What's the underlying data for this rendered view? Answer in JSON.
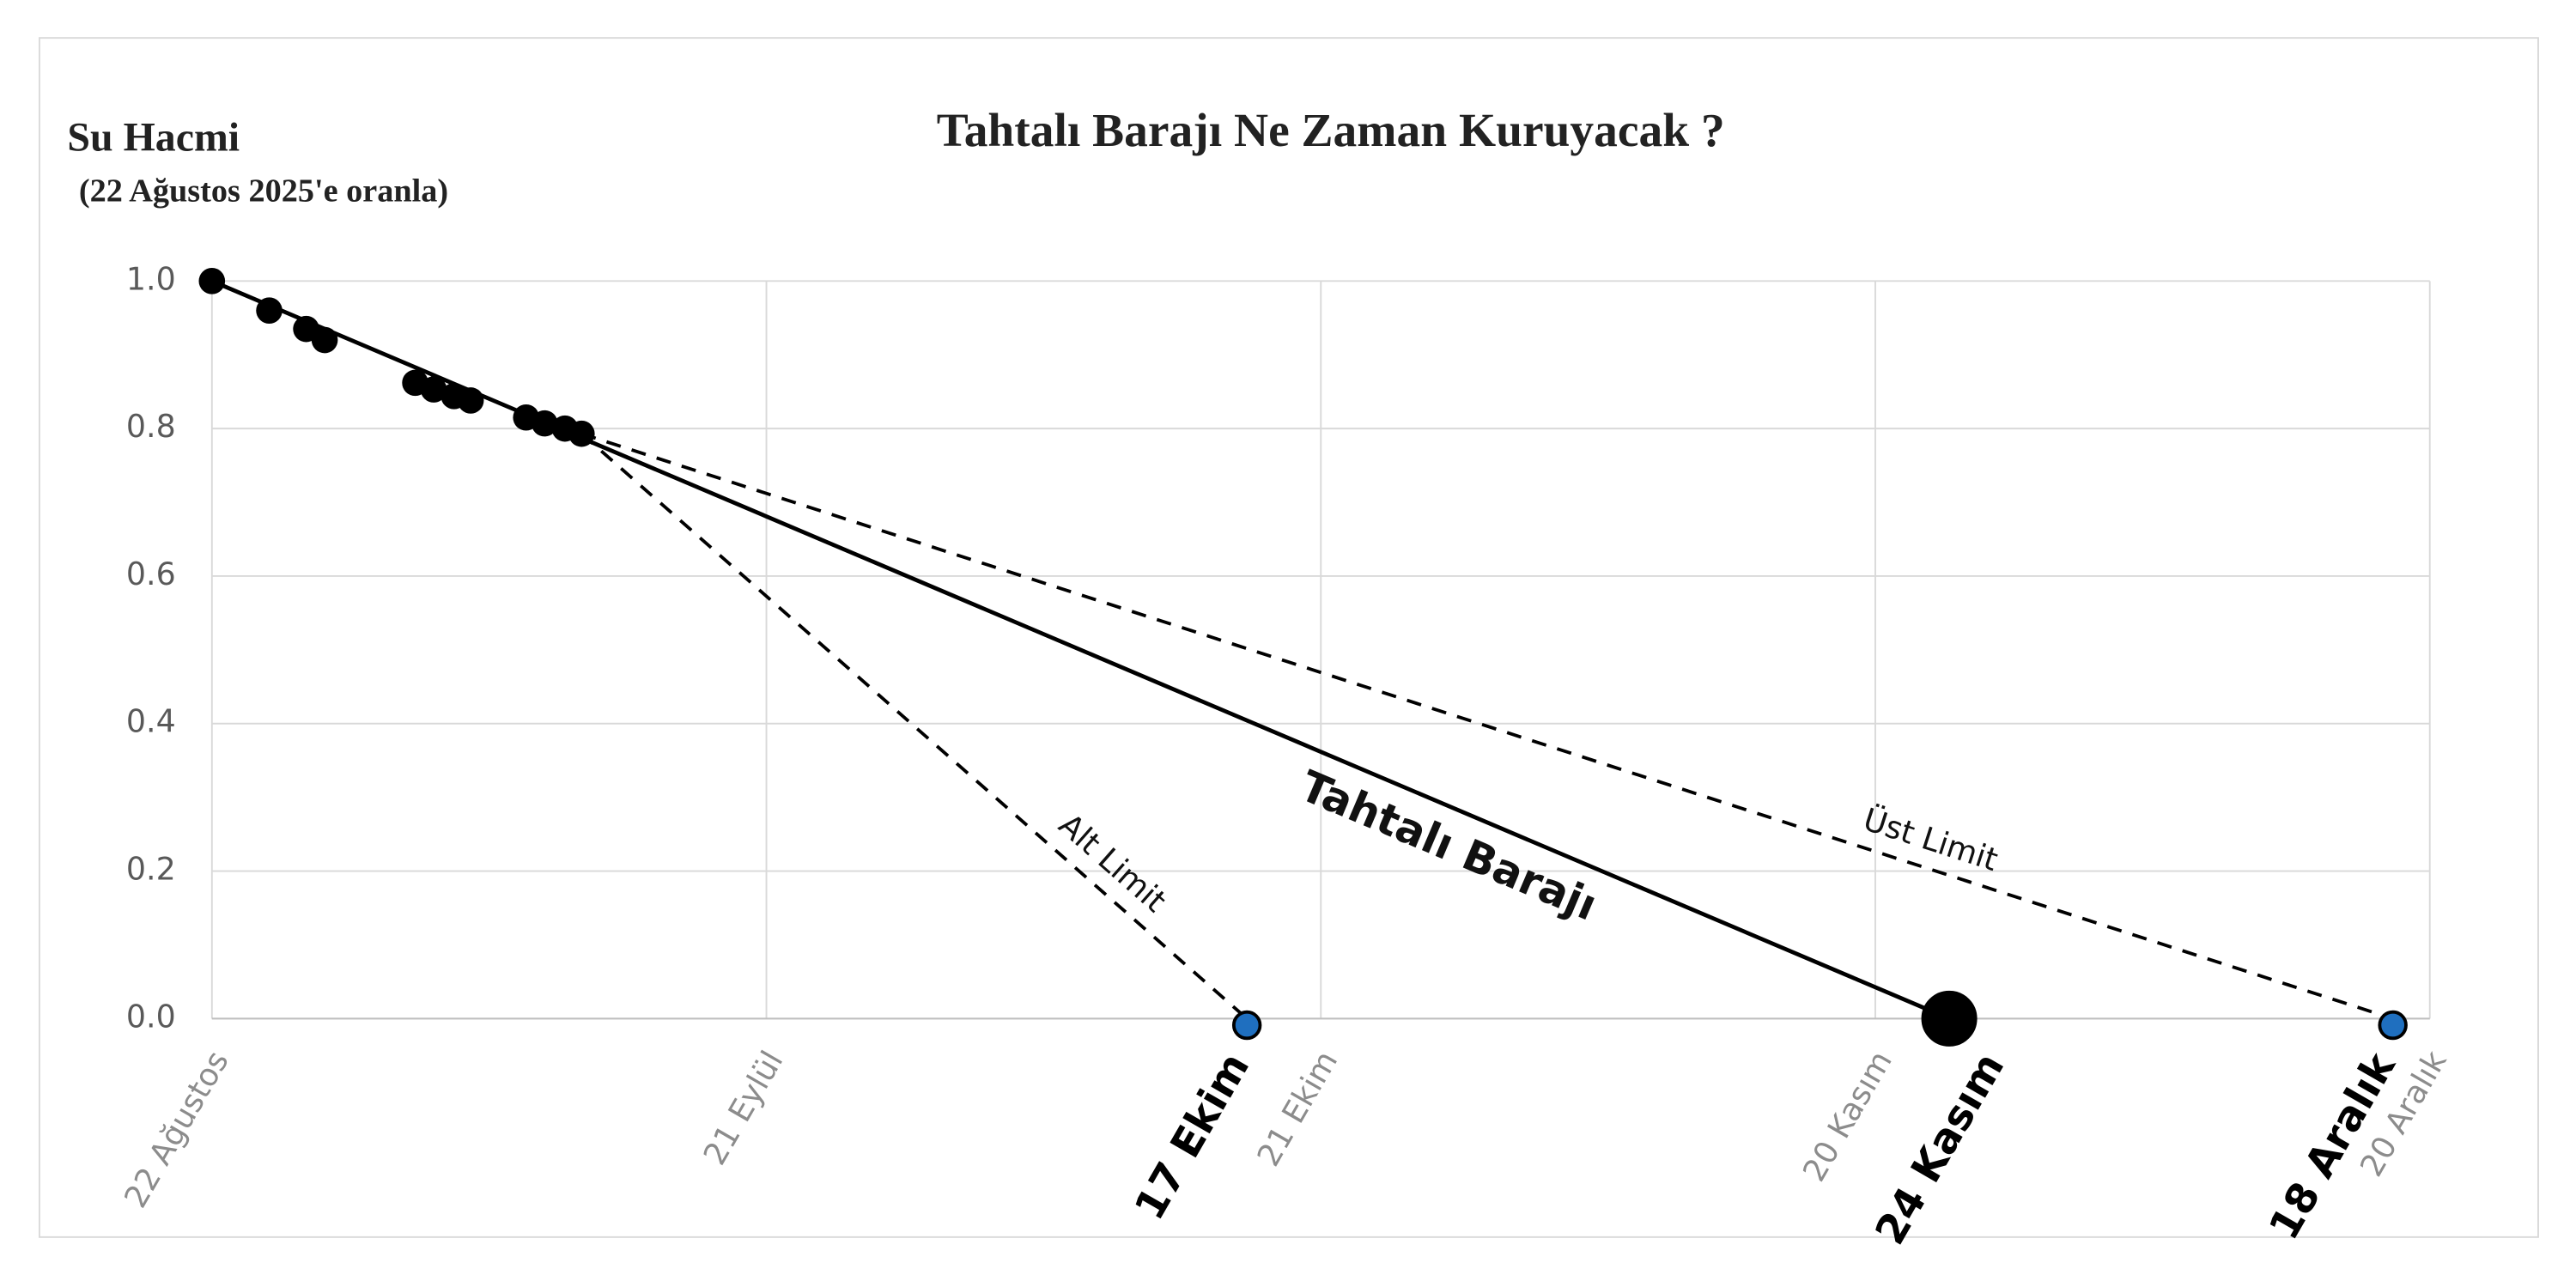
{
  "chart_data": {
    "type": "line",
    "title": "Tahtalı Barajı Ne Zaman Kuruyacak ?",
    "ylabel": "Su Hacmi",
    "ylabel_sub": "(22 Ağustos 2025'e oranla)",
    "xlim": [
      0,
      120
    ],
    "xticks": [
      {
        "value": 0,
        "label": "22 Ağustos"
      },
      {
        "value": 30,
        "label": "21 Eylül"
      },
      {
        "value": 60,
        "label": "21 Ekim"
      },
      {
        "value": 90,
        "label": "20 Kasım"
      },
      {
        "value": 120,
        "label": "20 Aralık"
      }
    ],
    "ylim": [
      0,
      1
    ],
    "yticks": [
      {
        "value": 0,
        "label": "0.0"
      },
      0.2,
      0.4,
      0.6,
      0.8,
      {
        "value": 1,
        "label": "1.0"
      }
    ],
    "grid": true,
    "observations": {
      "color": "#000000",
      "x": [
        0,
        3.1,
        5.1,
        6.1,
        11,
        12,
        13.1,
        14,
        17,
        18,
        19.1,
        20
      ],
      "values": [
        1.0,
        0.96,
        0.935,
        0.92,
        0.862,
        0.853,
        0.844,
        0.838,
        0.815,
        0.807,
        0.8,
        0.793
      ]
    },
    "series": [
      {
        "name": "Tahtalı Barajı",
        "color": "#000000",
        "dashed": false,
        "marker_color": "#000000",
        "end_label": "24 Kasım",
        "x": [
          0,
          94
        ],
        "values": [
          1.0,
          0
        ]
      },
      {
        "name": "Alt Limit",
        "color": "#000000",
        "dashed": true,
        "marker_color": "#1f6fbf",
        "end_label": "17 Ekim",
        "x": [
          20,
          56
        ],
        "values": [
          0.793,
          0
        ]
      },
      {
        "name": "Üst Limit",
        "color": "#000000",
        "dashed": true,
        "marker_color": "#1f6fbf",
        "end_label": "18 Aralık",
        "x": [
          20,
          118
        ],
        "values": [
          0.793,
          0
        ]
      }
    ]
  }
}
